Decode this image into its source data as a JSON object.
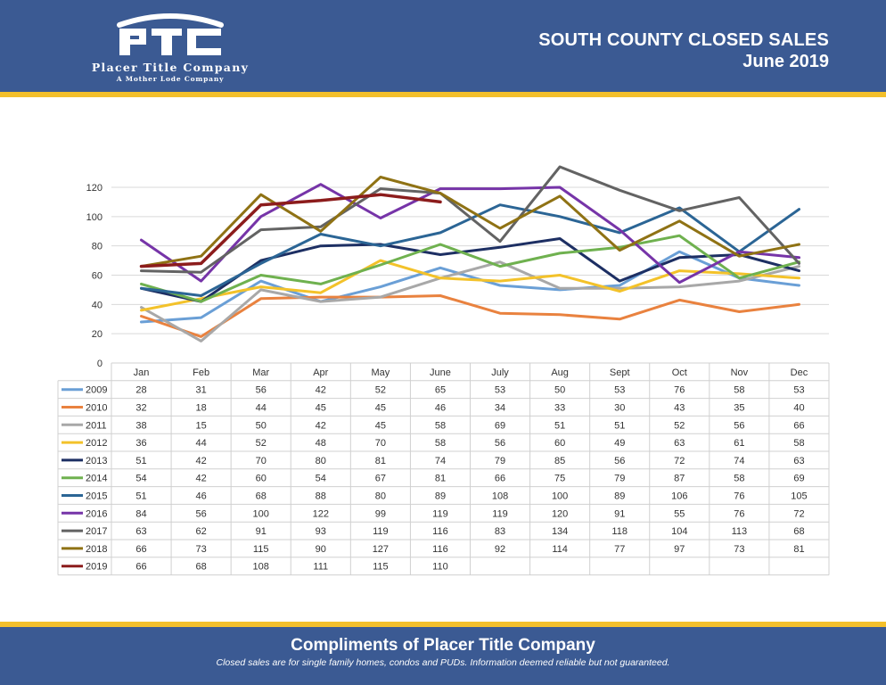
{
  "header": {
    "logo_mark": "PTC",
    "company_name": "Placer Title Company",
    "company_tagline": "A Mother Lode Company",
    "title": "SOUTH COUNTY CLOSED SALES",
    "date": "June 2019"
  },
  "footer": {
    "title": "Compliments of Placer Title Company",
    "note": "Closed sales are for single family homes, condos and PUDs. Information deemed reliable but not guaranteed."
  },
  "colors": {
    "band": "#3b5a93",
    "stripe": "#f3bf2b"
  },
  "chart_data": {
    "type": "line",
    "categories": [
      "Jan",
      "Feb",
      "Mar",
      "Apr",
      "May",
      "June",
      "July",
      "Aug",
      "Sept",
      "Oct",
      "Nov",
      "Dec"
    ],
    "ylim": [
      0,
      120
    ],
    "yticks": [
      0,
      20,
      40,
      60,
      80,
      100,
      120
    ],
    "grid": true,
    "legend": "data-table",
    "series": [
      {
        "name": "2009",
        "color": "#6a9fd6",
        "values": [
          28,
          31,
          56,
          42,
          52,
          65,
          53,
          50,
          53,
          76,
          58,
          53
        ]
      },
      {
        "name": "2010",
        "color": "#e9823f",
        "values": [
          32,
          18,
          44,
          45,
          45,
          46,
          34,
          33,
          30,
          43,
          35,
          40
        ]
      },
      {
        "name": "2011",
        "color": "#a8a8a8",
        "values": [
          38,
          15,
          50,
          42,
          45,
          58,
          69,
          51,
          51,
          52,
          56,
          66
        ]
      },
      {
        "name": "2012",
        "color": "#f3c22a",
        "values": [
          36,
          44,
          52,
          48,
          70,
          58,
          56,
          60,
          49,
          63,
          61,
          58
        ]
      },
      {
        "name": "2013",
        "color": "#1d2f63",
        "values": [
          51,
          42,
          70,
          80,
          81,
          74,
          79,
          85,
          56,
          72,
          74,
          63
        ]
      },
      {
        "name": "2014",
        "color": "#6fb14f",
        "values": [
          54,
          42,
          60,
          54,
          67,
          81,
          66,
          75,
          79,
          87,
          58,
          69
        ]
      },
      {
        "name": "2015",
        "color": "#2b6595",
        "values": [
          51,
          46,
          68,
          88,
          80,
          89,
          108,
          100,
          89,
          106,
          76,
          105
        ]
      },
      {
        "name": "2016",
        "color": "#7634a8",
        "values": [
          84,
          56,
          100,
          122,
          99,
          119,
          119,
          120,
          91,
          55,
          76,
          72
        ]
      },
      {
        "name": "2017",
        "color": "#636363",
        "values": [
          63,
          62,
          91,
          93,
          119,
          116,
          83,
          134,
          118,
          104,
          113,
          68
        ]
      },
      {
        "name": "2018",
        "color": "#8f7214",
        "values": [
          66,
          73,
          115,
          90,
          127,
          116,
          92,
          114,
          77,
          97,
          73,
          81
        ]
      },
      {
        "name": "2019",
        "color": "#8c1c1c",
        "values": [
          66,
          68,
          108,
          111,
          115,
          110,
          null,
          null,
          null,
          null,
          null,
          null
        ]
      }
    ]
  }
}
